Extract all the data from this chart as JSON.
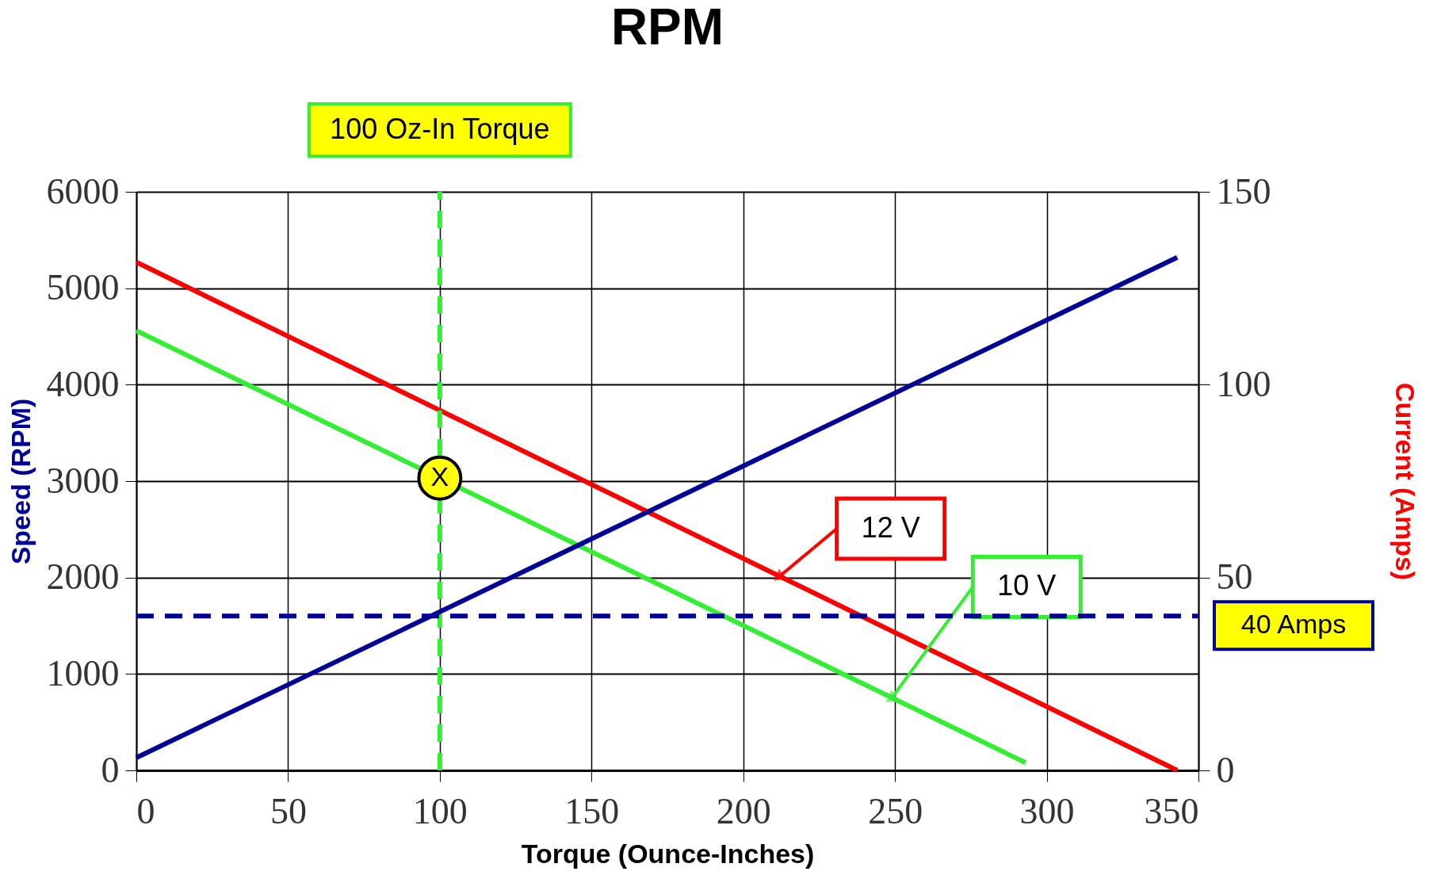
{
  "chart_data": {
    "type": "line",
    "title": "RPM",
    "xlabel": "Torque (Ounce-Inches)",
    "ylabel": "Speed (RPM)",
    "y2label": "Current (Amps)",
    "xlim": [
      0,
      350
    ],
    "xticks": [
      0,
      50,
      100,
      150,
      200,
      250,
      300,
      350
    ],
    "ylim": [
      0,
      6000
    ],
    "yticks": [
      0,
      1000,
      2000,
      3000,
      4000,
      5000,
      6000
    ],
    "y2lim": [
      0,
      150
    ],
    "y2ticks": [
      0,
      50,
      100,
      150
    ],
    "grid": true,
    "marker": "none",
    "line_style": "solid",
    "series": [
      {
        "color": "#ff0000",
        "x": [
          0,
          343
        ],
        "values": [
          5270,
          0
        ]
      },
      {
        "color": "#33ee33",
        "x": [
          0,
          293
        ],
        "values": [
          4560,
          80
        ]
      },
      {
        "color": "#000099",
        "x": [
          0,
          343
        ],
        "values": [
          3.3,
          133
        ],
        "axis": "y2"
      }
    ],
    "ref_lines": [
      {
        "axis": "x",
        "value": 100,
        "label": "100 Oz-In Torque",
        "color": "#33ee33",
        "line_style": "dashed"
      },
      {
        "axis": "y2",
        "value": 40,
        "label": "40 Amps",
        "color": "#000099",
        "line_style": "dashed"
      }
    ],
    "annotations": [
      {
        "text": "12 V",
        "x": 212,
        "y": 2013
      },
      {
        "text": "10 V",
        "x": 249,
        "y": 753
      },
      {
        "text": "X",
        "x": 100,
        "y": 3031
      }
    ]
  }
}
